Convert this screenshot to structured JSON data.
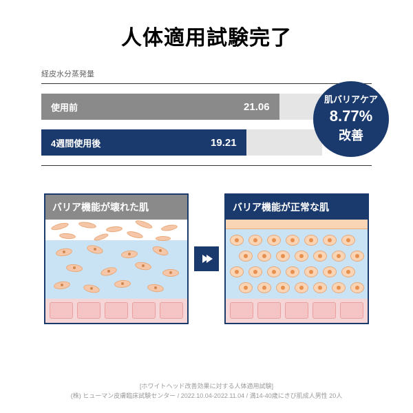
{
  "title": "人体適用試験完了",
  "chart": {
    "label": "経皮水分蒸発量",
    "background_color": "#e5e5e5",
    "bg_width_pct": 85,
    "bars": [
      {
        "label": "使用前",
        "value": "21.06",
        "width_pct": 72,
        "color": "#8a8a8a"
      },
      {
        "label": "4週間使用後",
        "value": "19.21",
        "width_pct": 62,
        "color": "#1a3a6e"
      }
    ]
  },
  "badge": {
    "line1": "肌バリアケア",
    "line2": "8.77%",
    "line3": "改善",
    "bg": "#1a3a6e"
  },
  "diagrams": {
    "left": {
      "header": "バリア機能が壊れた肌",
      "header_bg": "#8a8a8a"
    },
    "right": {
      "header": "バリア機能が正常な肌",
      "header_bg": "#1a3a6e"
    }
  },
  "colors": {
    "top_strip": "#f9d4b5",
    "mid_layer": "#c9e3f5",
    "bottom_layer": "#f5d5d5",
    "border": "#1a3a6e"
  },
  "footnote": {
    "line1": "[ホワイトヘッド改善効果に対する人体適用試験]",
    "line2": "(株) ヒューマン皮膚臨床試験センター / 2022.10.04-2022.11.04 / 満14-40歳にきび肌成人男性 20人"
  }
}
